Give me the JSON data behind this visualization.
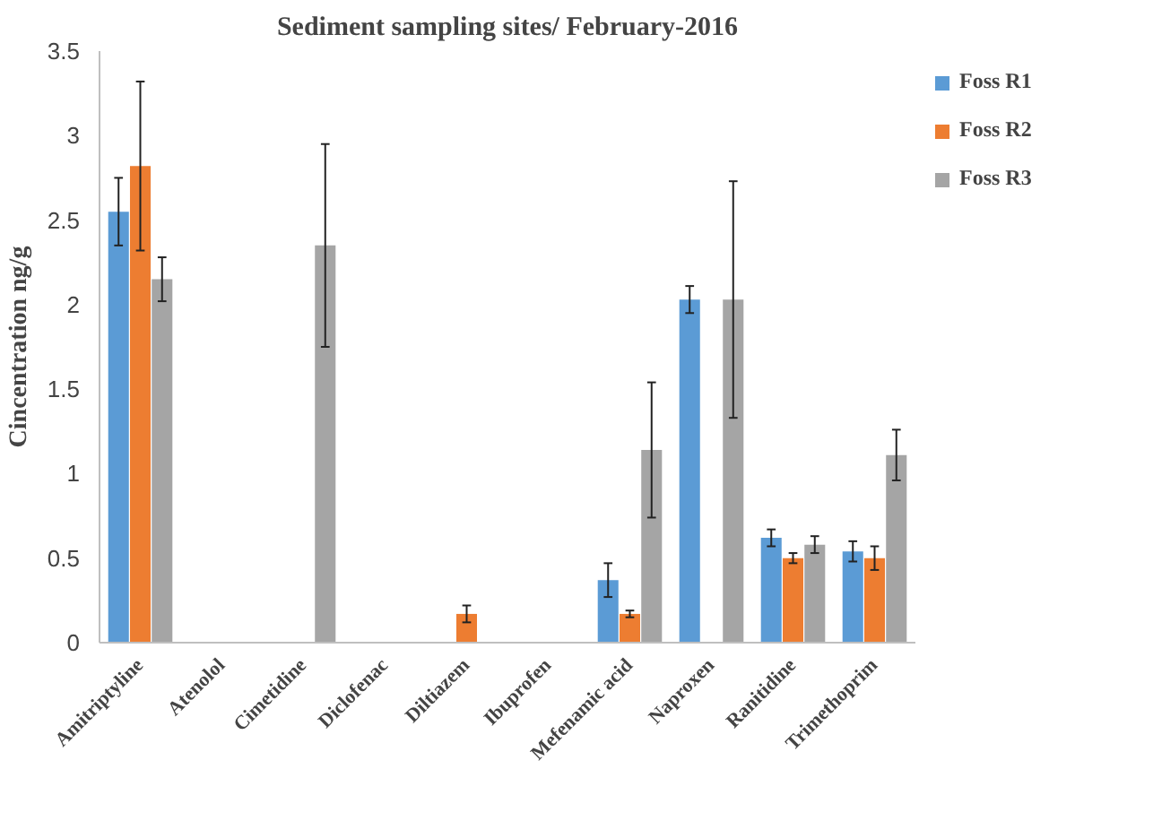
{
  "chart_data": {
    "type": "bar",
    "title": "Sediment sampling sites/ February-2016",
    "ylabel": "Cincentration ng/g",
    "categories": [
      "Amitriptyline",
      "Atenolol",
      "Cimetidine",
      "Diclofenac",
      "Diltiazem",
      "Ibuprofen",
      "Mefenamic acid",
      "Naproxen",
      "Ranitidine",
      "Trimethoprim"
    ],
    "series": [
      {
        "name": "Foss R1",
        "color": "#5b9bd5",
        "values": [
          2.55,
          0,
          0,
          0,
          0,
          0,
          0.37,
          2.03,
          0.62,
          0.54
        ],
        "errors": [
          0.2,
          null,
          null,
          null,
          null,
          null,
          0.1,
          0.08,
          0.05,
          0.06
        ]
      },
      {
        "name": "Foss R2",
        "color": "#ed7d31",
        "values": [
          2.82,
          0,
          0,
          0,
          0.17,
          0,
          0.17,
          0,
          0.5,
          0.5
        ],
        "errors": [
          0.5,
          null,
          null,
          null,
          0.05,
          null,
          0.02,
          null,
          0.03,
          0.07
        ]
      },
      {
        "name": "Foss R3",
        "color": "#a5a5a5",
        "values": [
          2.15,
          0,
          2.35,
          0,
          0,
          0,
          1.14,
          2.03,
          0.58,
          1.11
        ],
        "errors": [
          0.13,
          null,
          0.6,
          null,
          null,
          null,
          0.4,
          0.7,
          0.05,
          0.15
        ]
      }
    ],
    "ylim": [
      0,
      3.5
    ],
    "yticks": [
      0,
      0.5,
      1,
      1.5,
      2,
      2.5,
      3,
      3.5
    ],
    "grid": false,
    "legend": "top right"
  }
}
